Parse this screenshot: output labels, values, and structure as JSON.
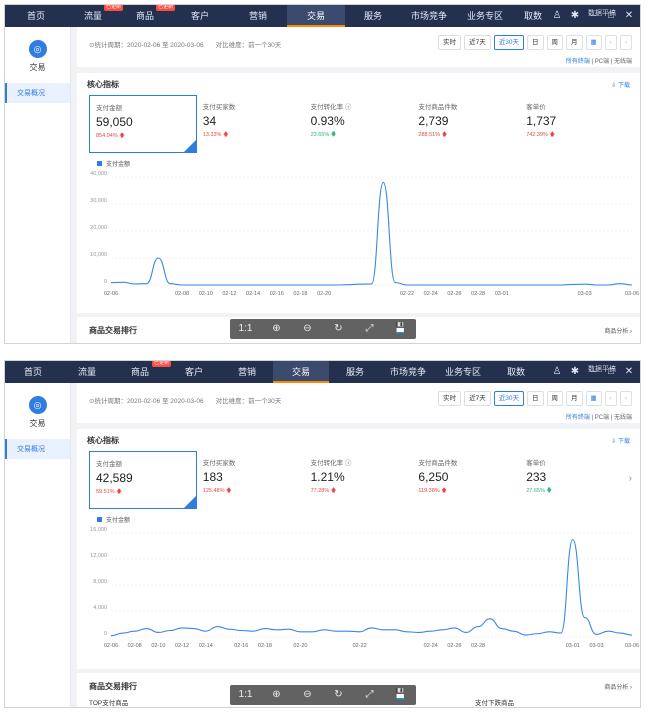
{
  "screens": [
    {
      "nav": {
        "items": [
          "首页",
          "流量",
          "商品",
          "客户",
          "营销",
          "交易",
          "服务",
          "市场竞争",
          "业务专区",
          "取数"
        ],
        "active_index": 5,
        "badges": {
          "1": "已更新",
          "2": "已更新"
        },
        "corner_label": "数据平搞"
      },
      "sidebar": {
        "title": "交易",
        "item": "交易概况"
      },
      "filter": {
        "period": "⊙统计周期：2020-02-06 至 2020-03-06",
        "compare": "对比维度：前一个30天",
        "buttons": [
          "实时",
          "近7天",
          "近30天",
          "日",
          "周",
          "月"
        ],
        "selected_button": 2,
        "terminals": [
          "所有终端",
          "PC端",
          "无线端"
        ]
      },
      "card": {
        "title": "核心指标",
        "download": "⇩ 下载",
        "metrics": [
          {
            "label": "支付金额",
            "value": "59,050",
            "change": "854.94%",
            "dir": "up"
          },
          {
            "label": "支付买家数",
            "value": "34",
            "change": "13.33%",
            "dir": "up"
          },
          {
            "label": "支付转化率 ⓘ",
            "value": "0.93%",
            "change": "23.65%",
            "dir": "down"
          },
          {
            "label": "支付商品件数",
            "value": "2,739",
            "change": "288.51%",
            "dir": "up"
          },
          {
            "label": "客单价",
            "value": "1,737",
            "change": "742.39%",
            "dir": "up"
          }
        ]
      },
      "chart_data": {
        "type": "line",
        "series": [
          {
            "name": "支付金额",
            "values": [
              900,
              1000,
              400,
              500,
              10000,
              500,
              0,
              0,
              0,
              0,
              0,
              0,
              0,
              0,
              0,
              0,
              0,
              0,
              0,
              0,
              100,
              300,
              400,
              38000,
              900,
              0,
              0,
              0,
              0,
              0,
              0,
              0,
              0,
              0,
              0,
              0,
              0,
              0,
              0,
              200,
              300,
              0,
              0,
              500,
              0
            ]
          }
        ],
        "x": [
          "02-06",
          "",
          "",
          "",
          "",
          "",
          "02-08",
          "",
          "02-10",
          "",
          "02-12",
          "",
          "02-14",
          "",
          "02-16",
          "",
          "02-18",
          "",
          "02-20",
          "",
          "",
          "",
          "",
          "",
          "",
          "02-22",
          "",
          "02-24",
          "",
          "02-26",
          "",
          "02-28",
          "",
          "03-01",
          "",
          "",
          "",
          "",
          "",
          "",
          "03-03",
          "",
          "",
          "",
          "03-06"
        ],
        "x_ticks": [
          "02-06",
          "02-08",
          "02-10",
          "02-12",
          "02-14",
          "02-16",
          "02-18",
          "02-20",
          "02-22",
          "02-24",
          "02-26",
          "02-28",
          "03-01",
          "03-03",
          "03-06"
        ],
        "y_ticks": [
          "0",
          "10,000",
          "20,000",
          "30,000",
          "40,000"
        ],
        "ylim": [
          0,
          40000
        ]
      },
      "bottom": {
        "title": "商品交易排行",
        "link": "商品分析 ›"
      },
      "viewer": [
        "1:1",
        "⊕",
        "⊖",
        "↻",
        "⤢",
        "💾"
      ]
    },
    {
      "nav": {
        "items": [
          "首页",
          "流量",
          "商品",
          "客户",
          "营销",
          "交易",
          "服务",
          "市场竞争",
          "业务专区",
          "取数"
        ],
        "active_index": 5,
        "badges": {
          "2": "已更新"
        },
        "corner_label": "数据平搞"
      },
      "sidebar": {
        "title": "交易",
        "item": "交易概况"
      },
      "filter": {
        "period": "⊙统计周期：2020-02-06 至 2020-03-06",
        "compare": "对比维度：前一个30天",
        "buttons": [
          "实时",
          "近7天",
          "近30天",
          "日",
          "周",
          "月"
        ],
        "selected_button": 2,
        "terminals": [
          "所有终端",
          "PC端",
          "无线端"
        ]
      },
      "card": {
        "title": "核心指标",
        "download": "⇩ 下载",
        "metrics": [
          {
            "label": "支付金额",
            "value": "42,589",
            "change": "59.51%",
            "dir": "up"
          },
          {
            "label": "支付买家数",
            "value": "183",
            "change": "125.48%",
            "dir": "up"
          },
          {
            "label": "支付转化率 ⓘ",
            "value": "1.21%",
            "change": "77.28%",
            "dir": "up"
          },
          {
            "label": "支付商品件数",
            "value": "6,250",
            "change": "119.38%",
            "dir": "up"
          },
          {
            "label": "客单价",
            "value": "233",
            "change": "27.65%",
            "dir": "down"
          }
        ]
      },
      "chart_data": {
        "type": "line",
        "series": [
          {
            "name": "支付金额",
            "values": [
              200,
              600,
              900,
              1300,
              700,
              1000,
              1400,
              1300,
              900,
              1600,
              1200,
              1000,
              900,
              1300,
              1100,
              1200,
              800,
              800,
              1100,
              900,
              900,
              800,
              1400,
              1100,
              1100,
              800,
              700,
              900,
              1100,
              1400,
              700,
              1600,
              2800,
              1300,
              900,
              300,
              500,
              800,
              600,
              15000,
              3000,
              400,
              900,
              600,
              300
            ]
          }
        ],
        "x": [
          "02-06",
          "",
          "02-08",
          "",
          "02-10",
          "",
          "02-12",
          "",
          "02-14",
          "",
          "",
          "02-16",
          "",
          "02-18",
          "",
          "",
          "02-20",
          "",
          "",
          "",
          "",
          "02-22",
          "",
          "",
          "",
          "",
          "",
          "02-24",
          "",
          "02-26",
          "",
          "02-28",
          "",
          "",
          "",
          "",
          "",
          "",
          "",
          "03-01",
          "",
          "03-03",
          "",
          "",
          "03-06"
        ],
        "x_ticks": [
          "02-06",
          "02-08",
          "02-10",
          "02-12",
          "02-14",
          "02-16",
          "02-18",
          "02-20",
          "02-22",
          "02-24",
          "02-26",
          "02-28",
          "03-01",
          "03-03",
          "03-06"
        ],
        "y_ticks": [
          "0",
          "4,000",
          "8,000",
          "12,000",
          "16,000"
        ],
        "ylim": [
          0,
          16000
        ]
      },
      "bottom": {
        "title": "商品交易排行",
        "link": "商品分析 ›",
        "sub_left": "TOP支付商品",
        "sub_right": "支付下跌商品"
      },
      "viewer": [
        "1:1",
        "⊕",
        "⊖",
        "↻",
        "⤢",
        "💾"
      ]
    }
  ]
}
